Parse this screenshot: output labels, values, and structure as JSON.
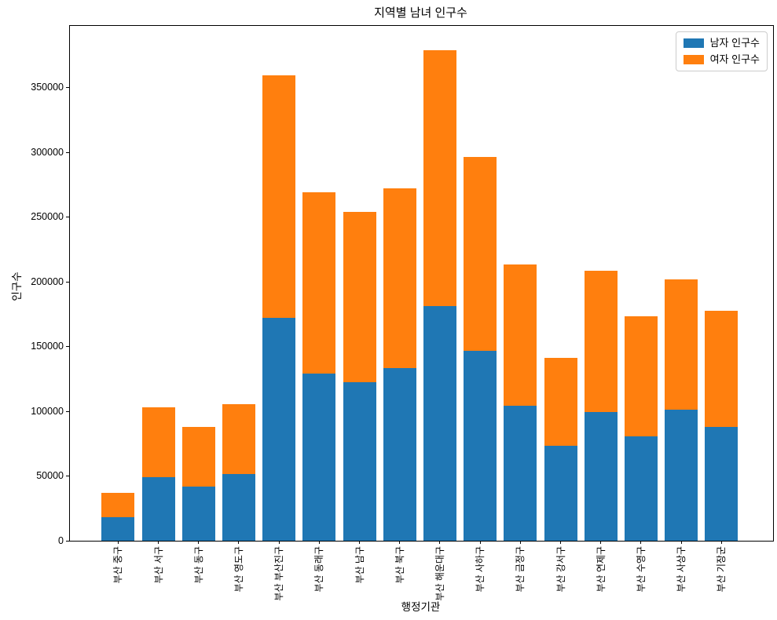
{
  "chart_data": {
    "type": "bar",
    "stacked": true,
    "title": "지역별 남녀 인구수",
    "xlabel": "행정기관",
    "ylabel": "인구수",
    "categories": [
      "부산 중구",
      "부산 서구",
      "부산 동구",
      "부산 영도구",
      "부산 부산진구",
      "부산 동래구",
      "부산 남구",
      "부산 북구",
      "부산 해운대구",
      "부산 사하구",
      "부산 금정구",
      "부산 강서구",
      "부산 연제구",
      "부산 수영구",
      "부산 사상구",
      "부산 기장군"
    ],
    "series": [
      {
        "name": "남자 인구수",
        "color": "#1f77b4",
        "values": [
          18300,
          49300,
          41800,
          51400,
          172000,
          129100,
          122700,
          133400,
          181100,
          146700,
          104300,
          73500,
          99400,
          80800,
          101400,
          88100
        ]
      },
      {
        "name": "여자 인구수",
        "color": "#ff7f0e",
        "values": [
          19000,
          53600,
          45900,
          54100,
          187500,
          140100,
          131200,
          139000,
          197600,
          149700,
          109300,
          68000,
          109200,
          92400,
          100500,
          89500
        ]
      }
    ],
    "yticks": [
      0,
      50000,
      100000,
      150000,
      200000,
      250000,
      300000,
      350000
    ],
    "ylim": [
      0,
      397700
    ],
    "grid": false,
    "legend_position": "upper right",
    "background": "#ffffff",
    "spine_color": "#000000"
  }
}
